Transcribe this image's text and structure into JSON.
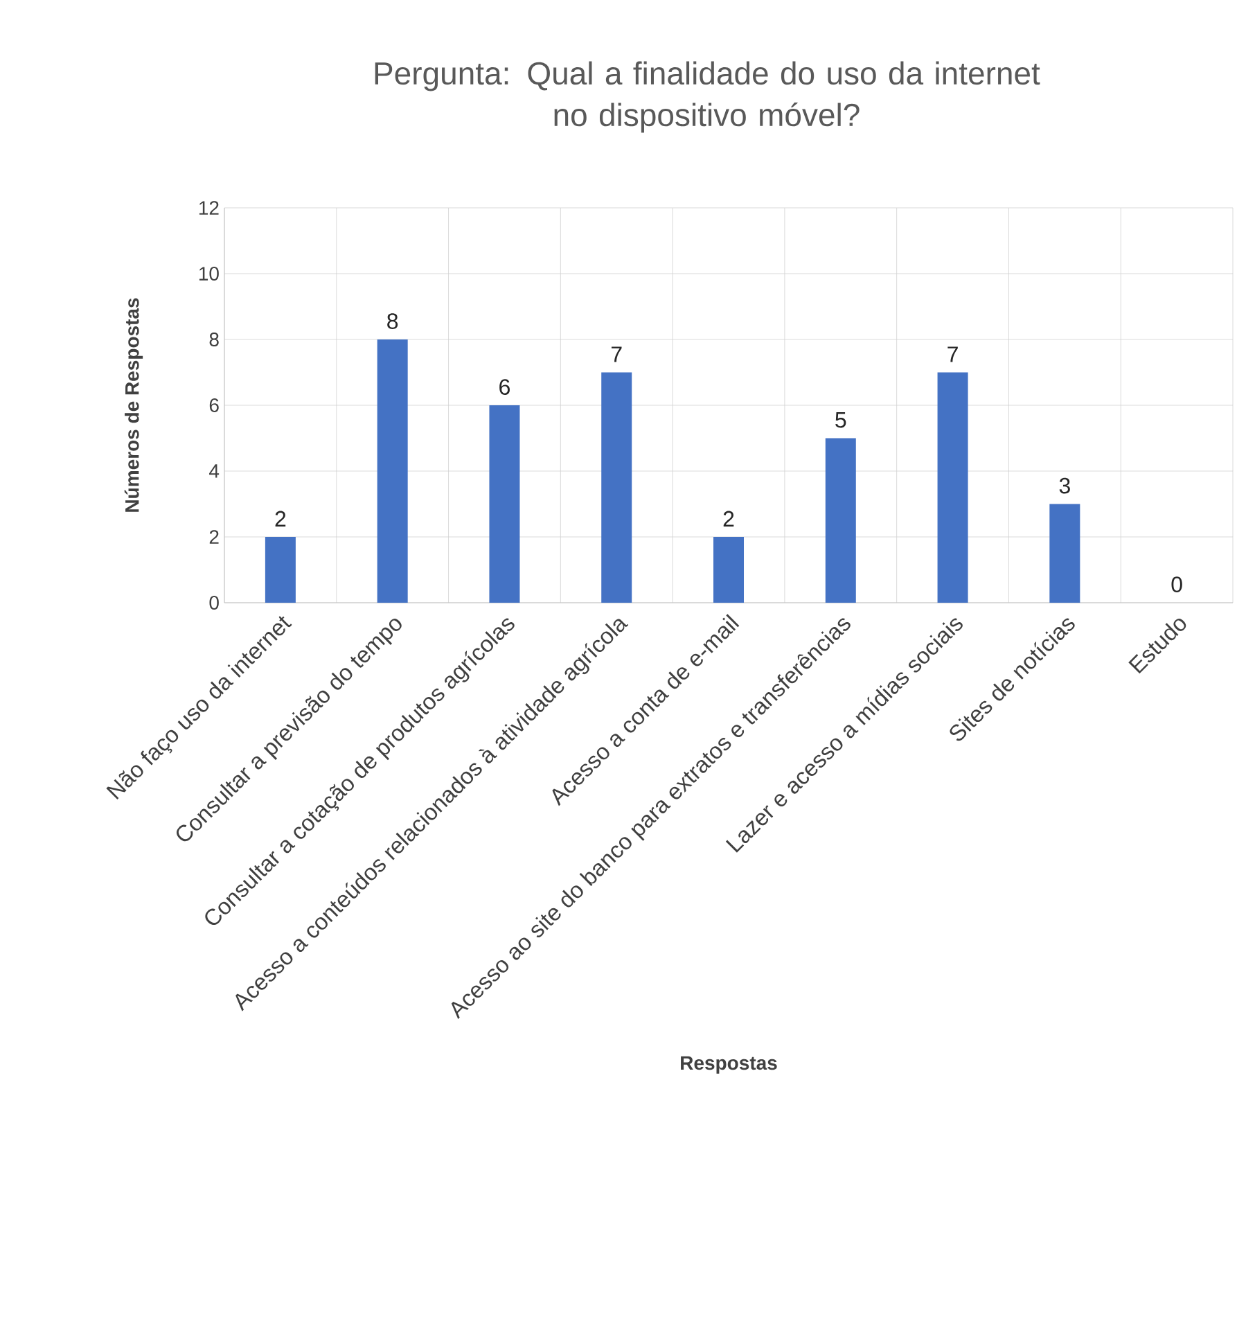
{
  "chart_data": {
    "type": "bar",
    "title": "Pergunta: Qual a finalidade do uso da internet\nno dispositivo móvel?",
    "xlabel": "Respostas",
    "ylabel": "Números de Respostas",
    "categories": [
      "Não faço uso da internet",
      "Consultar a previsão do tempo",
      "Consultar a cotação de produtos agrícolas",
      "Acesso a conteúdos relacionados à atividade agrícola",
      "Acesso a conta de e-mail",
      "Acesso ao site do banco para extratos e transferências",
      "Lazer e acesso a mídias sociais",
      "Sites de notícias",
      "Estudo"
    ],
    "values": [
      2,
      8,
      6,
      7,
      2,
      5,
      7,
      3,
      0
    ],
    "color": "#4472c4",
    "ylim": [
      0,
      12
    ],
    "yticks": [
      0,
      2,
      4,
      6,
      8,
      10,
      12
    ],
    "grid": true,
    "data_labels": true
  }
}
